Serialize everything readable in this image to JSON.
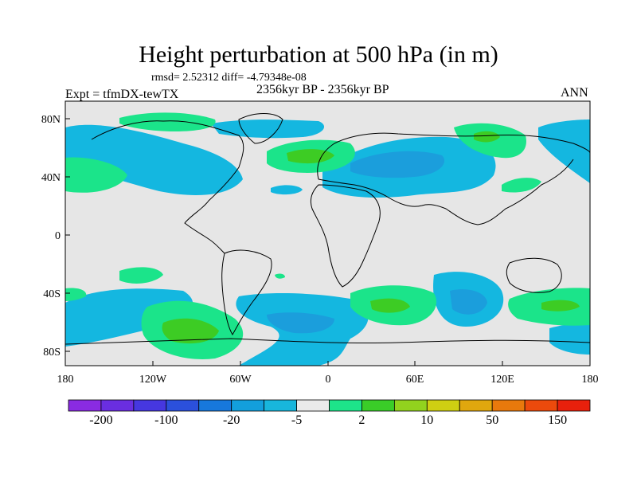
{
  "title": "Height perturbation at 500 hPa (in m)",
  "stats": "rmsd= 2.52312  diff= -4.79348e-08",
  "expt": "Expt = tfmDX-tewTX",
  "period": "2356kyr BP - 2356kyr BP",
  "season": "ANN",
  "lat_labels": [
    "80N",
    "40N",
    "0",
    "40S",
    "80S"
  ],
  "lon_labels": [
    "180",
    "120W",
    "60W",
    "0",
    "60E",
    "120E",
    "180"
  ],
  "colorbar": {
    "colors": [
      "#8a2be2",
      "#6a2ee0",
      "#4637e0",
      "#2b50dc",
      "#1778dc",
      "#139fdc",
      "#18b6dc",
      "#eaeaea",
      "#1de48a",
      "#3acd28",
      "#92d21e",
      "#cfcf12",
      "#e0a70e",
      "#e8790c",
      "#ec4a0c",
      "#e8200c"
    ],
    "tick_labels": [
      "-200",
      "-100",
      "-20",
      "-5",
      "2",
      "10",
      "50",
      "150"
    ]
  },
  "legend_colors": {
    "land_bg": "#e6e6e6",
    "light_blue": "#14b7e0",
    "mid_blue": "#1b9edc",
    "light_green": "#1be48a",
    "mid_green": "#3dcc24"
  }
}
